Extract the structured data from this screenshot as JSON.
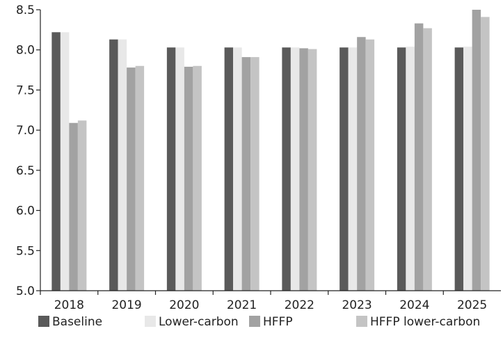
{
  "chart_data": {
    "type": "bar",
    "title": "",
    "xlabel": "",
    "ylabel": "",
    "categories": [
      "2018",
      "2019",
      "2020",
      "2021",
      "2022",
      "2023",
      "2024",
      "2025"
    ],
    "ylim": [
      5.0,
      8.5
    ],
    "yticks": [
      "5.0",
      "5.5",
      "6.0",
      "6.5",
      "7.0",
      "7.5",
      "8.0",
      "8.5"
    ],
    "grid": false,
    "legend_position": "bottom",
    "series": [
      {
        "name": "Baseline",
        "color": "#5a5a5a",
        "values": [
          8.22,
          8.13,
          8.03,
          8.03,
          8.03,
          8.03,
          8.03,
          8.03
        ]
      },
      {
        "name": "Lower-carbon",
        "color": "#e8e8e8",
        "values": [
          8.22,
          8.13,
          8.03,
          8.03,
          8.03,
          8.03,
          8.04,
          8.04
        ]
      },
      {
        "name": "HFFP",
        "color": "#a2a2a2",
        "values": [
          7.09,
          7.78,
          7.79,
          7.91,
          8.02,
          8.16,
          8.33,
          8.5
        ]
      },
      {
        "name": "HFFP lower-carbon",
        "color": "#c4c4c4",
        "values": [
          7.12,
          7.8,
          7.8,
          7.91,
          8.01,
          8.13,
          8.27,
          8.41
        ]
      }
    ]
  }
}
